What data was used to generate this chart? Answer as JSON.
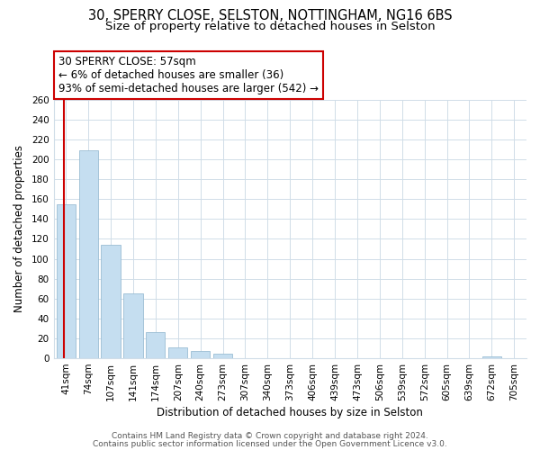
{
  "title_line1": "30, SPERRY CLOSE, SELSTON, NOTTINGHAM, NG16 6BS",
  "title_line2": "Size of property relative to detached houses in Selston",
  "xlabel": "Distribution of detached houses by size in Selston",
  "ylabel": "Number of detached properties",
  "bar_labels": [
    "41sqm",
    "74sqm",
    "107sqm",
    "141sqm",
    "174sqm",
    "207sqm",
    "240sqm",
    "273sqm",
    "307sqm",
    "340sqm",
    "373sqm",
    "406sqm",
    "439sqm",
    "473sqm",
    "506sqm",
    "539sqm",
    "572sqm",
    "605sqm",
    "639sqm",
    "672sqm",
    "705sqm"
  ],
  "bar_values": [
    155,
    209,
    114,
    65,
    26,
    11,
    7,
    5,
    0,
    0,
    0,
    0,
    0,
    0,
    0,
    0,
    0,
    0,
    0,
    2,
    0
  ],
  "bar_color": "#c5def0",
  "bar_edge_color": "#9bbdd4",
  "vline_color": "#cc0000",
  "vline_x": -0.08,
  "annotation_text": "30 SPERRY CLOSE: 57sqm\n← 6% of detached houses are smaller (36)\n93% of semi-detached houses are larger (542) →",
  "annotation_box_color": "#ffffff",
  "annotation_border_color": "#cc0000",
  "ylim": [
    0,
    260
  ],
  "yticks": [
    0,
    20,
    40,
    60,
    80,
    100,
    120,
    140,
    160,
    180,
    200,
    220,
    240,
    260
  ],
  "grid_color": "#d0dde8",
  "background_color": "#ffffff",
  "footer_line1": "Contains HM Land Registry data © Crown copyright and database right 2024.",
  "footer_line2": "Contains public sector information licensed under the Open Government Licence v3.0.",
  "title_fontsize": 10.5,
  "subtitle_fontsize": 9.5,
  "axis_label_fontsize": 8.5,
  "tick_fontsize": 7.5,
  "annotation_fontsize": 8.5,
  "footer_fontsize": 6.5
}
